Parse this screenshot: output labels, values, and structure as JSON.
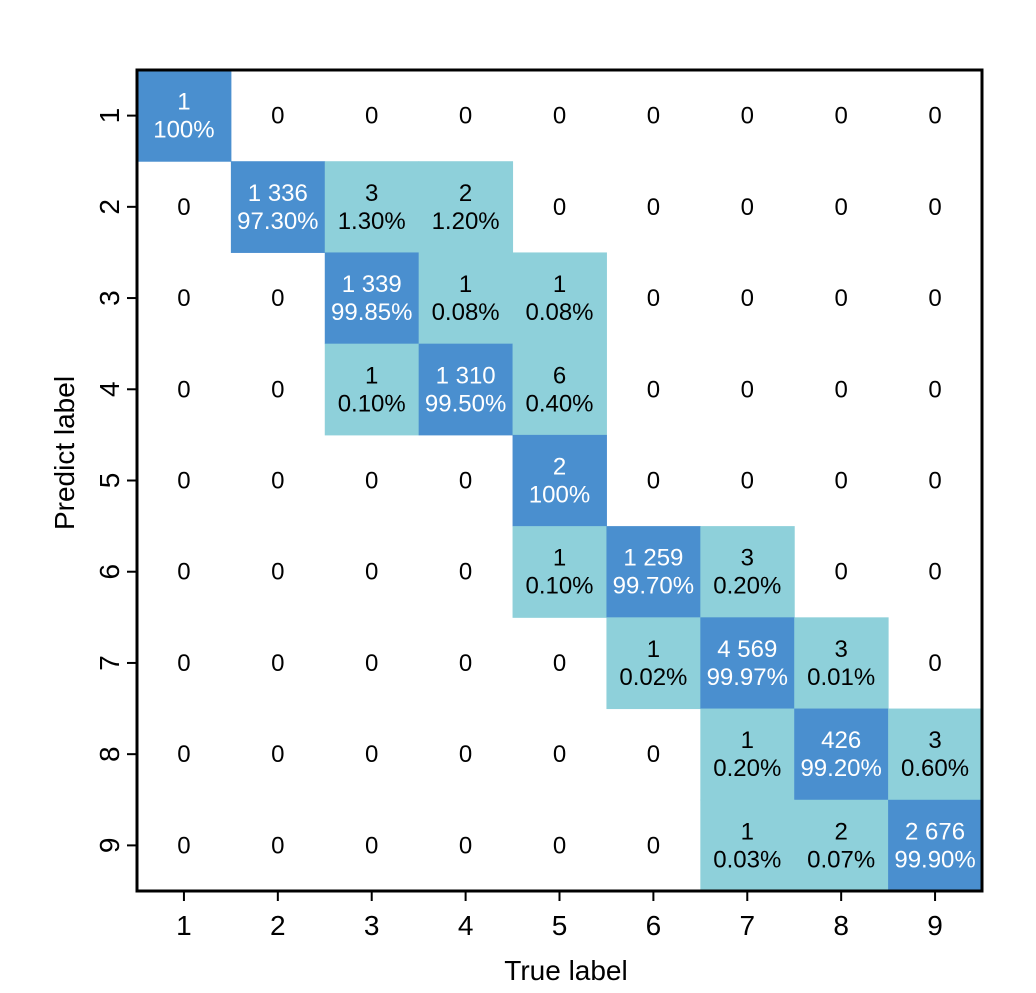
{
  "chart_data": {
    "type": "heatmap",
    "title": "",
    "xlabel": "True label",
    "ylabel": "Predict label",
    "x_ticks": [
      "1",
      "2",
      "3",
      "4",
      "5",
      "6",
      "7",
      "8",
      "9"
    ],
    "y_ticks": [
      "1",
      "2",
      "3",
      "4",
      "5",
      "6",
      "7",
      "8",
      "9"
    ],
    "rows": [
      {
        "predict": "1",
        "cells": [
          {
            "count": "1",
            "pct": "100%",
            "shade": "diag"
          },
          {
            "count": "0"
          },
          {
            "count": "0"
          },
          {
            "count": "0"
          },
          {
            "count": "0"
          },
          {
            "count": "0"
          },
          {
            "count": "0"
          },
          {
            "count": "0"
          },
          {
            "count": "0"
          }
        ]
      },
      {
        "predict": "2",
        "cells": [
          {
            "count": "0"
          },
          {
            "count": "1 336",
            "pct": "97.30%",
            "shade": "diag"
          },
          {
            "count": "3",
            "pct": "1.30%",
            "shade": "off"
          },
          {
            "count": "2",
            "pct": "1.20%",
            "shade": "off"
          },
          {
            "count": "0"
          },
          {
            "count": "0"
          },
          {
            "count": "0"
          },
          {
            "count": "0"
          },
          {
            "count": "0"
          }
        ]
      },
      {
        "predict": "3",
        "cells": [
          {
            "count": "0"
          },
          {
            "count": "0"
          },
          {
            "count": "1 339",
            "pct": "99.85%",
            "shade": "diag"
          },
          {
            "count": "1",
            "pct": "0.08%",
            "shade": "off"
          },
          {
            "count": "1",
            "pct": "0.08%",
            "shade": "off"
          },
          {
            "count": "0"
          },
          {
            "count": "0"
          },
          {
            "count": "0"
          },
          {
            "count": "0"
          }
        ]
      },
      {
        "predict": "4",
        "cells": [
          {
            "count": "0"
          },
          {
            "count": "0"
          },
          {
            "count": "1",
            "pct": "0.10%",
            "shade": "off"
          },
          {
            "count": "1 310",
            "pct": "99.50%",
            "shade": "diag"
          },
          {
            "count": "6",
            "pct": "0.40%",
            "shade": "off"
          },
          {
            "count": "0"
          },
          {
            "count": "0"
          },
          {
            "count": "0"
          },
          {
            "count": "0"
          }
        ]
      },
      {
        "predict": "5",
        "cells": [
          {
            "count": "0"
          },
          {
            "count": "0"
          },
          {
            "count": "0"
          },
          {
            "count": "0"
          },
          {
            "count": "2",
            "pct": "100%",
            "shade": "diag"
          },
          {
            "count": "0"
          },
          {
            "count": "0"
          },
          {
            "count": "0"
          },
          {
            "count": "0"
          }
        ]
      },
      {
        "predict": "6",
        "cells": [
          {
            "count": "0"
          },
          {
            "count": "0"
          },
          {
            "count": "0"
          },
          {
            "count": "0"
          },
          {
            "count": "1",
            "pct": "0.10%",
            "shade": "off"
          },
          {
            "count": "1 259",
            "pct": "99.70%",
            "shade": "diag"
          },
          {
            "count": "3",
            "pct": "0.20%",
            "shade": "off"
          },
          {
            "count": "0"
          },
          {
            "count": "0"
          }
        ]
      },
      {
        "predict": "7",
        "cells": [
          {
            "count": "0"
          },
          {
            "count": "0"
          },
          {
            "count": "0"
          },
          {
            "count": "0"
          },
          {
            "count": "0"
          },
          {
            "count": "1",
            "pct": "0.02%",
            "shade": "off"
          },
          {
            "count": "4 569",
            "pct": "99.97%",
            "shade": "diag"
          },
          {
            "count": "3",
            "pct": "0.01%",
            "shade": "off"
          },
          {
            "count": "0"
          }
        ]
      },
      {
        "predict": "8",
        "cells": [
          {
            "count": "0"
          },
          {
            "count": "0"
          },
          {
            "count": "0"
          },
          {
            "count": "0"
          },
          {
            "count": "0"
          },
          {
            "count": "0"
          },
          {
            "count": "1",
            "pct": "0.20%",
            "shade": "off"
          },
          {
            "count": "426",
            "pct": "99.20%",
            "shade": "diag"
          },
          {
            "count": "3",
            "pct": "0.60%",
            "shade": "off"
          }
        ]
      },
      {
        "predict": "9",
        "cells": [
          {
            "count": "0"
          },
          {
            "count": "0"
          },
          {
            "count": "0"
          },
          {
            "count": "0"
          },
          {
            "count": "0"
          },
          {
            "count": "0"
          },
          {
            "count": "1",
            "pct": "0.03%",
            "shade": "off"
          },
          {
            "count": "2",
            "pct": "0.07%",
            "shade": "off"
          },
          {
            "count": "2 676",
            "pct": "99.90%",
            "shade": "diag"
          }
        ]
      }
    ],
    "colors": {
      "diag": "#4a8fcf",
      "off": "#8ed0da",
      "diag_text": "#ffffff",
      "text": "#000000",
      "frame": "#000000"
    },
    "grid": false
  }
}
